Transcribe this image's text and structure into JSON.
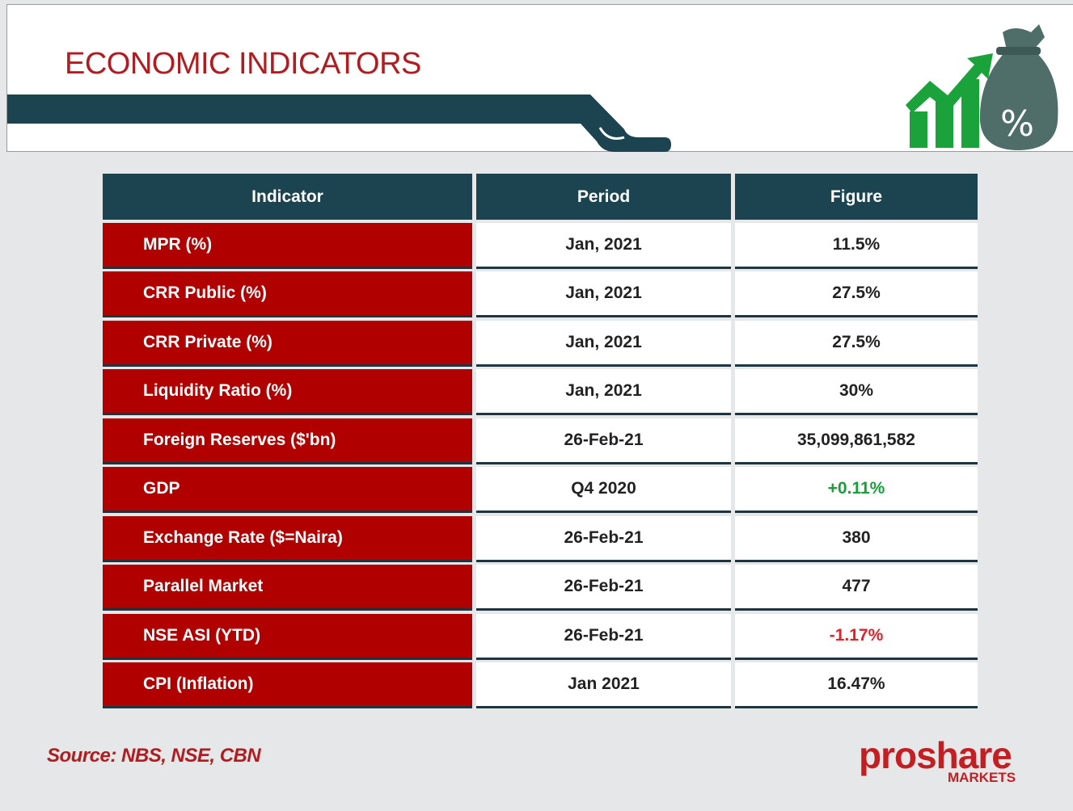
{
  "header": {
    "title": "ECONOMIC INDICATORS"
  },
  "table": {
    "headers": [
      "Indicator",
      "Period",
      "Figure"
    ],
    "rows": [
      [
        "MPR (%)",
        "Jan, 2021",
        "11.5%"
      ],
      [
        "CRR Public (%)",
        "Jan, 2021",
        "27.5%"
      ],
      [
        "CRR Private (%)",
        "Jan, 2021",
        "27.5%"
      ],
      [
        "Liquidity Ratio (%)",
        "Jan, 2021",
        "30%"
      ],
      [
        "Foreign Reserves ($'bn)",
        "26-Feb-21",
        "35,099,861,582"
      ],
      [
        "GDP",
        "Q4 2020",
        "+0.11%"
      ],
      [
        "Exchange Rate ($=Naira)",
        "26-Feb-21",
        "380"
      ],
      [
        "Parallel Market",
        "26-Feb-21",
        "477"
      ],
      [
        "NSE ASI (YTD)",
        "26-Feb-21",
        "-1.17%"
      ],
      [
        "CPI (Inflation)",
        "Jan 2021",
        "16.47%"
      ]
    ]
  },
  "footer": {
    "source": "Source: NBS, NSE, CBN",
    "logo": "proshare",
    "logo_sub": "MARKETS"
  }
}
